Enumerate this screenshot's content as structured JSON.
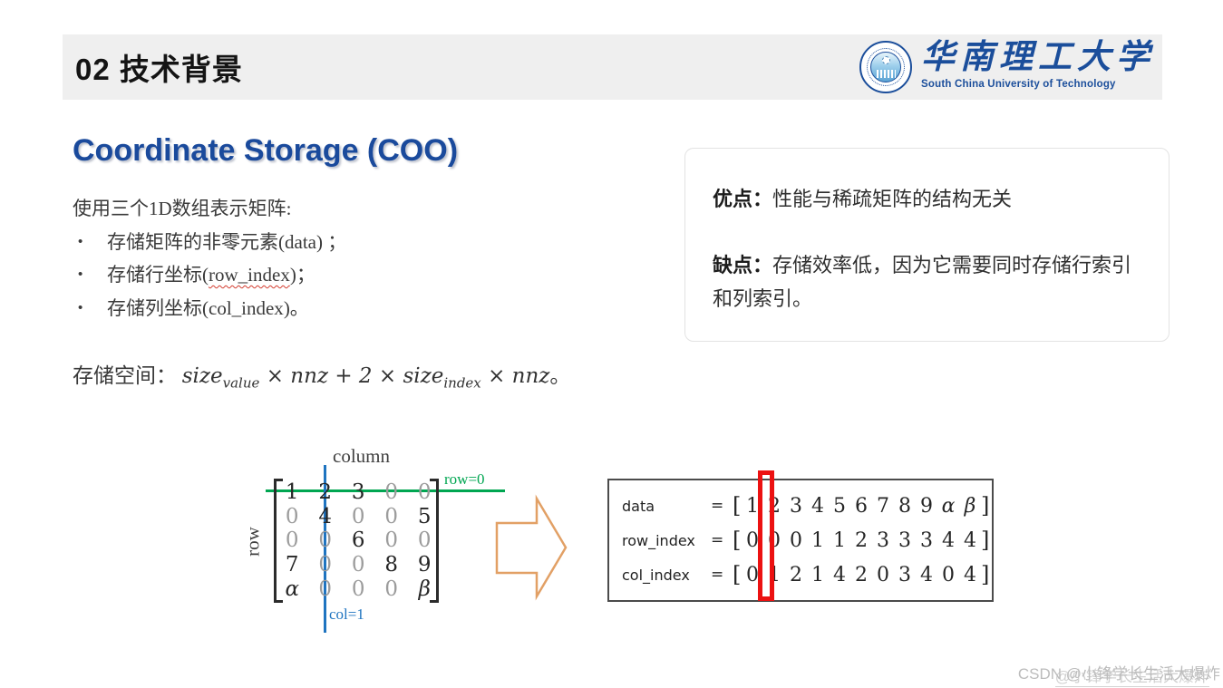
{
  "colors": {
    "header_bg": "#efefef",
    "title_blue": "#1a4a9c",
    "logo_blue": "#1b4e9b",
    "row_line_green": "#00a651",
    "col_line_blue": "#1f74c0",
    "arrow_orange": "#e2a065",
    "highlight_red": "#ec1111",
    "body_text": "#3a3a3a",
    "zero_gray": "#9c9c9c"
  },
  "header": {
    "title": "02 技术背景",
    "logo": {
      "zh": "华南理工大学",
      "en": "South China University of Technology"
    }
  },
  "main": {
    "title": "Coordinate Storage (COO)",
    "intro": "使用三个1D数组表示矩阵:",
    "bullets": [
      {
        "dot": "•",
        "pre": "存储矩阵的非零元素(",
        "mid": "data",
        "post": ") ；"
      },
      {
        "dot": "•",
        "pre": "存储行坐标(",
        "mid": "row_index",
        "post": ")；"
      },
      {
        "dot": "•",
        "pre": "存储列坐标(",
        "mid": "col_index",
        "post": ")。"
      }
    ],
    "pros_cons": {
      "advantage_label": "优点：",
      "advantage_text": "性能与稀疏矩阵的结构无关",
      "disadvantage_label": "缺点：",
      "disadvantage_text": "存储效率低，因为它需要同时存储行索引和列索引。"
    },
    "formula": {
      "label": "存储空间： ",
      "var1": "size",
      "sub1": "value",
      "mid": " × nnz + 2 × ",
      "var2": "size",
      "sub2": "index",
      "tail": " × nnz",
      "end": "。"
    }
  },
  "figure": {
    "column_label": "column",
    "row_label": "row",
    "row_line_label": "row=0",
    "col_line_label": "col=1",
    "matrix": [
      [
        "1",
        "2",
        "3",
        "0",
        "0"
      ],
      [
        "0",
        "4",
        "0",
        "0",
        "5"
      ],
      [
        "0",
        "0",
        "6",
        "0",
        "0"
      ],
      [
        "7",
        "0",
        "0",
        "8",
        "9"
      ],
      [
        "α",
        "0",
        "0",
        "0",
        "β"
      ]
    ],
    "arrays": [
      {
        "label": "data",
        "eq": "=",
        "open": "[",
        "close": "]",
        "values": [
          "1",
          "2",
          "3",
          "4",
          "5",
          "6",
          "7",
          "8",
          "9",
          "α",
          "β"
        ]
      },
      {
        "label": "row_index",
        "eq": "=",
        "open": "[",
        "close": "]",
        "values": [
          "0",
          "0",
          "0",
          "1",
          "1",
          "2",
          "3",
          "3",
          "3",
          "4",
          "4"
        ]
      },
      {
        "label": "col_index",
        "eq": "=",
        "open": "[",
        "close": "]",
        "values": [
          "0",
          "1",
          "2",
          "1",
          "4",
          "2",
          "0",
          "3",
          "4",
          "0",
          "4"
        ]
      }
    ]
  },
  "watermark": {
    "text": "CSDN @小锋学长生活大爆炸",
    "overlay": "@小锋学长生活大爆炸"
  }
}
